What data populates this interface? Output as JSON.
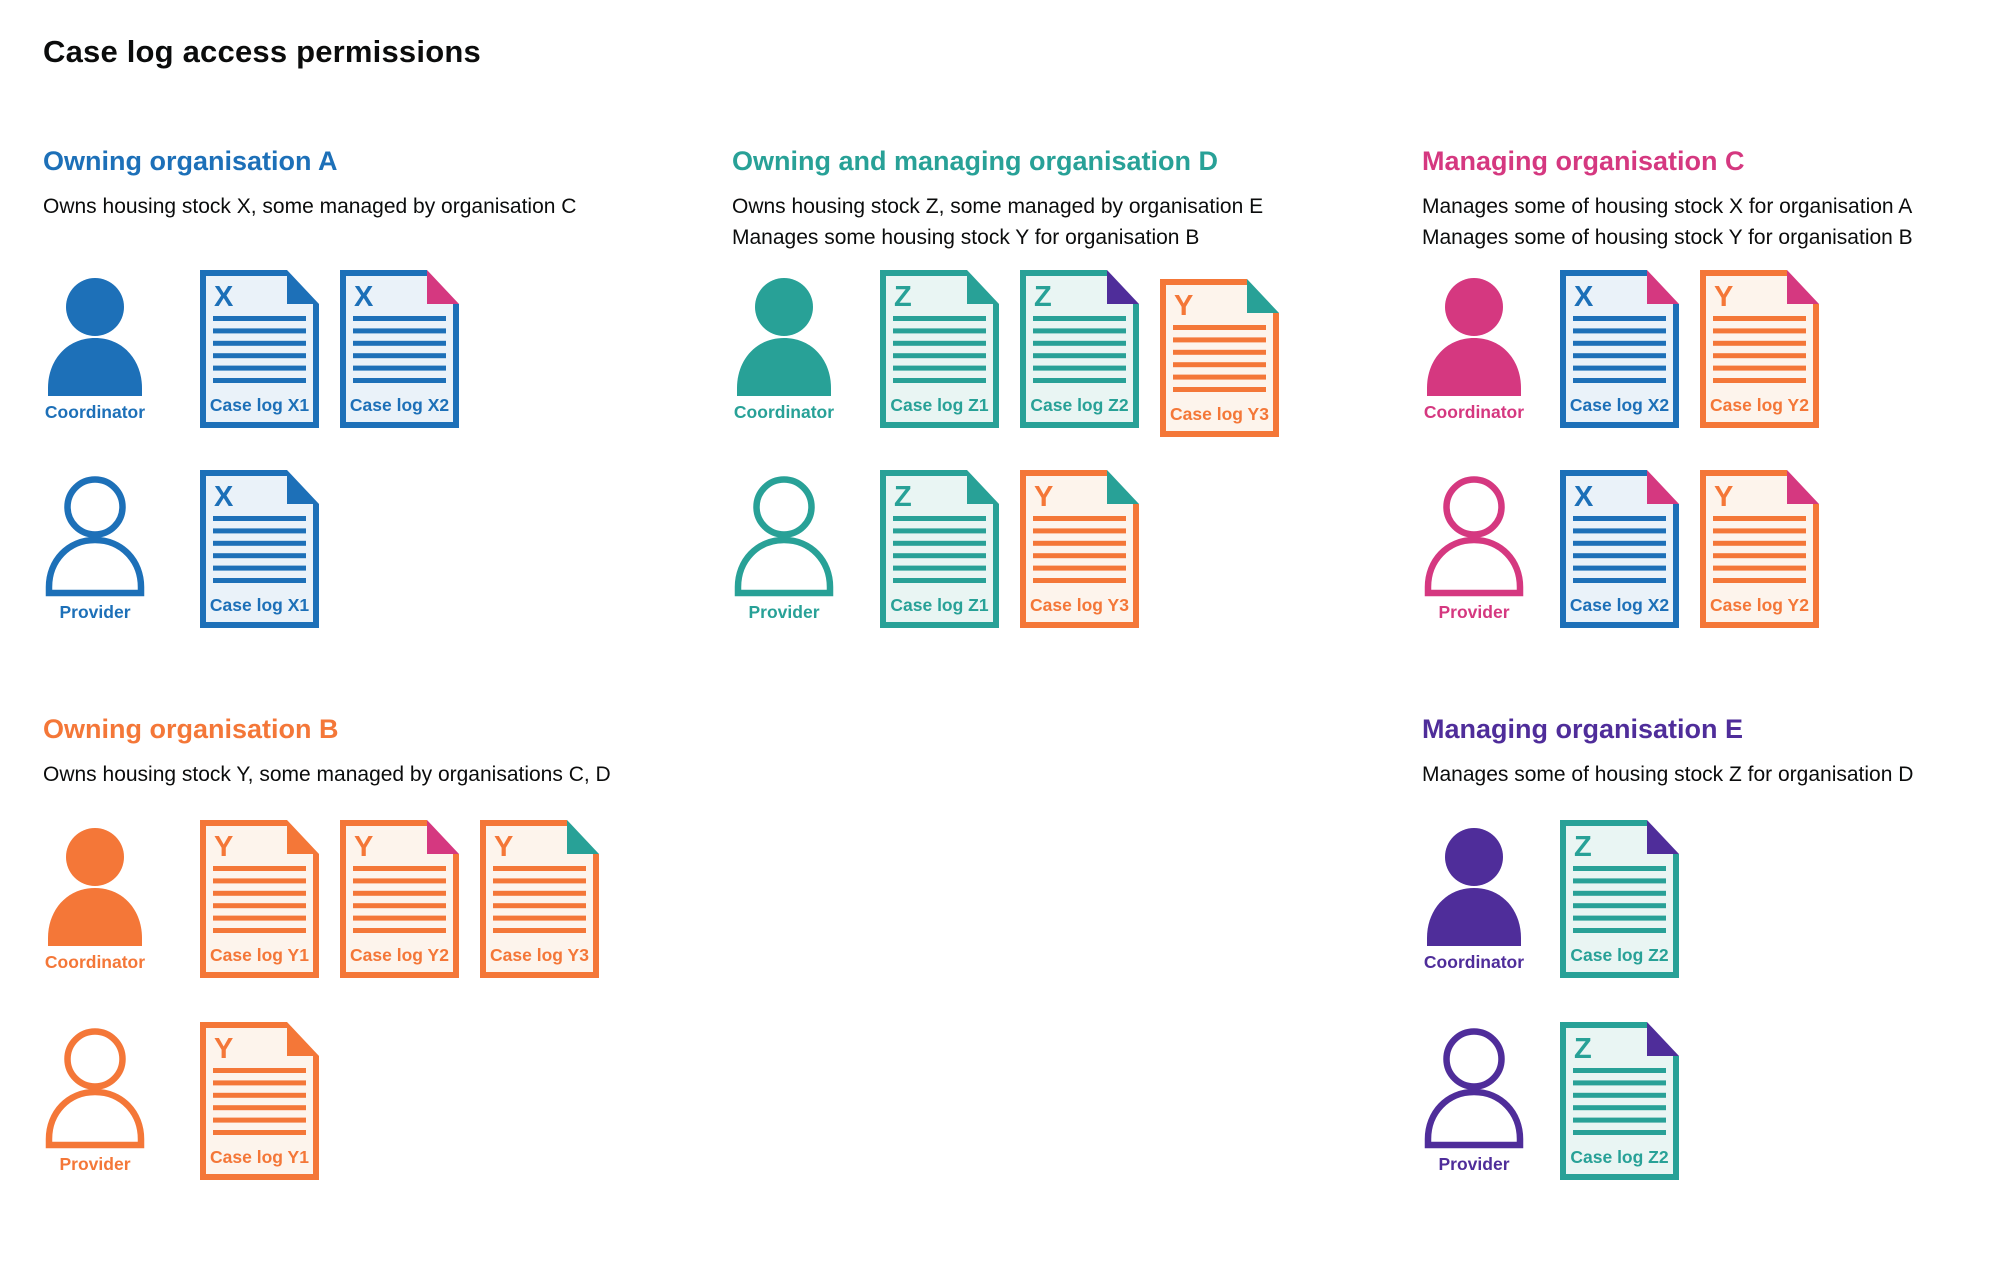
{
  "title": "Case log access permissions",
  "roles": {
    "coordinator": "Coordinator",
    "provider": "Provider"
  },
  "palette": {
    "blue": "#1d70b8",
    "turquoise": "#28a197",
    "pink": "#d53880",
    "orange": "#f47738",
    "purple": "#4f2d9a",
    "text": "#0b0c0c",
    "doc_bg_blue": "#eaf2f9",
    "doc_bg_turquoise": "#e9f5f3",
    "doc_bg_orange": "#fdf4ec"
  },
  "case_logs": {
    "X1": {
      "letter": "X",
      "label": "Case log X1",
      "stock": "blue",
      "fold": "blue"
    },
    "X2": {
      "letter": "X",
      "label": "Case log X2",
      "stock": "blue",
      "fold": "pink"
    },
    "Y1": {
      "letter": "Y",
      "label": "Case log Y1",
      "stock": "orange",
      "fold": "orange"
    },
    "Y2": {
      "letter": "Y",
      "label": "Case log Y2",
      "stock": "orange",
      "fold": "pink"
    },
    "Y3": {
      "letter": "Y",
      "label": "Case log Y3",
      "stock": "orange",
      "fold": "turquoise"
    },
    "Z1": {
      "letter": "Z",
      "label": "Case log Z1",
      "stock": "turquoise",
      "fold": "turquoise"
    },
    "Z2": {
      "letter": "Z",
      "label": "Case log Z2",
      "stock": "turquoise",
      "fold": "purple"
    }
  },
  "organisations": [
    {
      "id": "a",
      "name": "Owning organisation A",
      "color": "blue",
      "description": [
        "Owns housing stock X, some managed by organisation C"
      ],
      "coordinator_case_logs": [
        "X1",
        "X2"
      ],
      "provider_case_logs": [
        "X1"
      ]
    },
    {
      "id": "d",
      "name": "Owning and managing organisation D",
      "color": "turquoise",
      "description": [
        "Owns housing stock Z, some managed by organisation E",
        "Manages some housing stock Y for organisation B"
      ],
      "coordinator_case_logs": [
        "Z1",
        "Z2",
        "Y3"
      ],
      "provider_case_logs": [
        "Z1",
        "Y3"
      ]
    },
    {
      "id": "c",
      "name": "Managing organisation C",
      "color": "pink",
      "description": [
        "Manages some of housing stock X for organisation A",
        "Manages some of housing stock Y for organisation B"
      ],
      "coordinator_case_logs": [
        "X2",
        "Y2"
      ],
      "provider_case_logs": [
        "X2",
        "Y2"
      ]
    },
    {
      "id": "b",
      "name": "Owning organisation B",
      "color": "orange",
      "description": [
        "Owns housing stock Y, some managed by organisations C, D"
      ],
      "coordinator_case_logs": [
        "Y1",
        "Y2",
        "Y3"
      ],
      "provider_case_logs": [
        "Y1"
      ]
    },
    {
      "id": "e",
      "name": "Managing organisation E",
      "color": "purple",
      "description": [
        "Manages some of housing stock Z for organisation D"
      ],
      "coordinator_case_logs": [
        "Z2"
      ],
      "provider_case_logs": [
        "Z2"
      ]
    }
  ]
}
